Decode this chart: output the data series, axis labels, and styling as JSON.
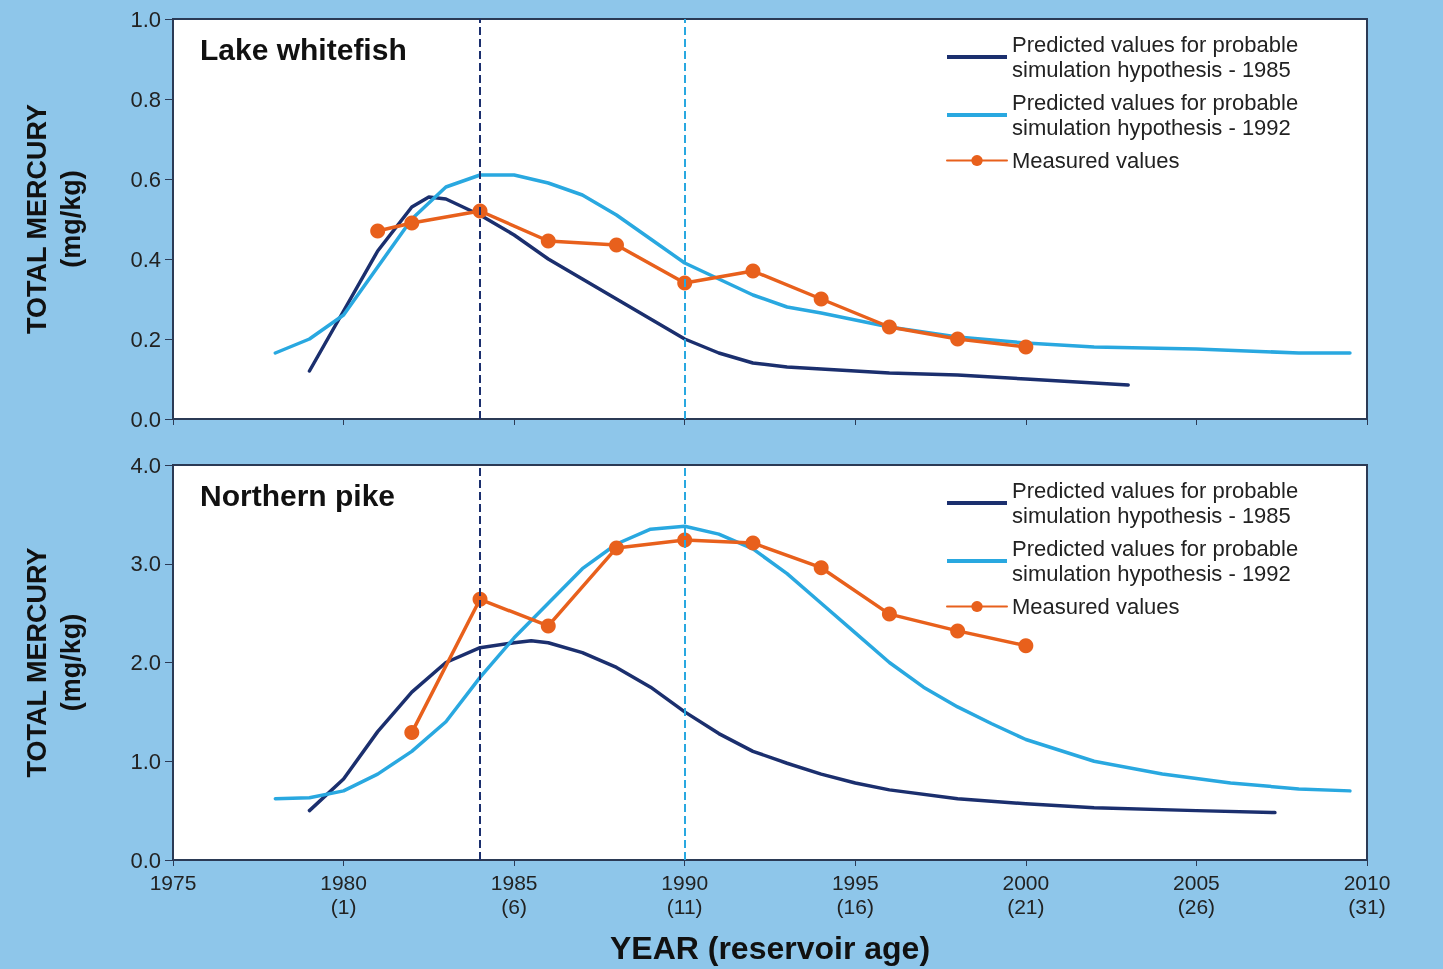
{
  "chart_data": [
    {
      "type": "line",
      "title": "Lake whitefish",
      "ylabel": "TOTAL MERCURY\n(mg/kg)",
      "xlim": [
        1975,
        2010
      ],
      "xticks": [
        1975,
        1980,
        1985,
        1990,
        1995,
        2000,
        2005,
        2010
      ],
      "ylim": [
        0,
        1
      ],
      "yticks": [
        {
          "value": 0,
          "label": "0.0"
        },
        {
          "value": 0.2,
          "label": "0.2"
        },
        {
          "value": 0.4,
          "label": "0.4"
        },
        {
          "value": 0.6,
          "label": "0.6"
        },
        {
          "value": 0.8,
          "label": "0.8"
        },
        {
          "value": 1,
          "label": "1.0"
        }
      ],
      "tick_labels": "y",
      "grid": false,
      "legend": "top right",
      "line_style": "solid",
      "series": [
        {
          "name": "Predicted values for probable simulation hypothesis - 1985",
          "color": "#1b2f6e",
          "marker": "none",
          "x": [
            1979,
            1980,
            1981,
            1982,
            1982.5,
            1983,
            1984,
            1985,
            1986,
            1987,
            1988,
            1989,
            1990,
            1991,
            1992,
            1993,
            1994,
            1996,
            1998,
            2000,
            2003
          ],
          "values": [
            0.12,
            0.27,
            0.42,
            0.53,
            0.555,
            0.55,
            0.51,
            0.46,
            0.4,
            0.35,
            0.3,
            0.25,
            0.2,
            0.165,
            0.14,
            0.13,
            0.125,
            0.115,
            0.11,
            0.1,
            0.085
          ]
        },
        {
          "name": "Predicted values for probable simulation hypothesis - 1992",
          "color": "#29a8e0",
          "marker": "none",
          "x": [
            1978,
            1979,
            1980,
            1981,
            1982,
            1983,
            1984,
            1985,
            1986,
            1987,
            1988,
            1989,
            1990,
            1991,
            1992,
            1993,
            1994,
            1996,
            1998,
            2000,
            2002,
            2005,
            2008,
            2009.5
          ],
          "values": [
            0.165,
            0.2,
            0.26,
            0.38,
            0.5,
            0.58,
            0.61,
            0.61,
            0.59,
            0.56,
            0.51,
            0.45,
            0.39,
            0.35,
            0.31,
            0.28,
            0.265,
            0.23,
            0.205,
            0.19,
            0.18,
            0.175,
            0.165,
            0.165
          ]
        },
        {
          "name": "Measured values",
          "color": "#e8601c",
          "marker": "circle",
          "x": [
            1981,
            1982,
            1984,
            1986,
            1988,
            1990,
            1992,
            1994,
            1996,
            1998,
            2000
          ],
          "values": [
            0.47,
            0.49,
            0.52,
            0.445,
            0.435,
            0.34,
            0.37,
            0.3,
            0.23,
            0.2,
            0.18
          ]
        }
      ],
      "ref_lines": [
        {
          "axis": "x",
          "value": 1984,
          "color": "#1b2f6e",
          "line_style": "dashed"
        },
        {
          "axis": "x",
          "value": 1990,
          "color": "#29a8e0",
          "line_style": "dashed"
        }
      ]
    },
    {
      "type": "line",
      "title": "Northern pike",
      "xlabel": "YEAR (reservoir age)",
      "ylabel": "TOTAL MERCURY\n(mg/kg)",
      "xlim": [
        1975,
        2010
      ],
      "xticks": [
        1975,
        1980,
        1985,
        1990,
        1995,
        2000,
        2005,
        2010
      ],
      "x2lim": [
        -4,
        31
      ],
      "x2ticks": [
        {
          "value": 1,
          "label": "(1)"
        },
        {
          "value": 6,
          "label": "(6)"
        },
        {
          "value": 11,
          "label": "(11)"
        },
        {
          "value": 16,
          "label": "(16)"
        },
        {
          "value": 21,
          "label": "(21)"
        },
        {
          "value": 26,
          "label": "(26)"
        },
        {
          "value": 31,
          "label": "(31)"
        }
      ],
      "ylim": [
        0,
        4
      ],
      "yticks": [
        {
          "value": 0,
          "label": "0.0"
        },
        {
          "value": 1,
          "label": "1.0"
        },
        {
          "value": 2,
          "label": "2.0"
        },
        {
          "value": 3,
          "label": "3.0"
        },
        {
          "value": 4,
          "label": "4.0"
        }
      ],
      "grid": false,
      "legend": "top right",
      "line_style": "solid",
      "series": [
        {
          "name": "Predicted values for probable simulation hypothesis - 1985",
          "color": "#1b2f6e",
          "marker": "none",
          "x": [
            1979,
            1980,
            1981,
            1982,
            1983,
            1984,
            1985,
            1985.5,
            1986,
            1987,
            1988,
            1989,
            1990,
            1991,
            1992,
            1993,
            1994,
            1995,
            1996,
            1998,
            2000,
            2002,
            2005,
            2007.3
          ],
          "values": [
            0.5,
            0.82,
            1.3,
            1.7,
            2.0,
            2.15,
            2.2,
            2.22,
            2.2,
            2.1,
            1.95,
            1.75,
            1.5,
            1.28,
            1.1,
            0.98,
            0.87,
            0.78,
            0.71,
            0.62,
            0.57,
            0.53,
            0.5,
            0.48
          ]
        },
        {
          "name": "Predicted values for probable simulation hypothesis - 1992",
          "color": "#29a8e0",
          "marker": "none",
          "x": [
            1978,
            1979,
            1980,
            1981,
            1982,
            1983,
            1984,
            1985,
            1986,
            1987,
            1988,
            1989,
            1990,
            1991,
            1992,
            1993,
            1994,
            1995,
            1996,
            1997,
            1998,
            1999,
            2000,
            2002,
            2004,
            2006,
            2008,
            2009.5
          ],
          "values": [
            0.62,
            0.63,
            0.7,
            0.87,
            1.1,
            1.4,
            1.85,
            2.25,
            2.6,
            2.95,
            3.2,
            3.35,
            3.38,
            3.3,
            3.15,
            2.9,
            2.6,
            2.3,
            2.0,
            1.75,
            1.55,
            1.38,
            1.22,
            1.0,
            0.87,
            0.78,
            0.72,
            0.7
          ]
        },
        {
          "name": "Measured values",
          "color": "#e8601c",
          "marker": "circle",
          "x": [
            1982,
            1984,
            1986,
            1988,
            1990,
            1992,
            1994,
            1996,
            1998,
            2000
          ],
          "values": [
            1.29,
            2.64,
            2.37,
            3.16,
            3.24,
            3.21,
            2.96,
            2.49,
            2.32,
            2.17
          ]
        }
      ],
      "ref_lines": [
        {
          "axis": "x",
          "value": 1984,
          "color": "#1b2f6e",
          "line_style": "dashed"
        },
        {
          "axis": "x",
          "value": 1990,
          "color": "#29a8e0",
          "line_style": "dashed"
        }
      ]
    }
  ]
}
